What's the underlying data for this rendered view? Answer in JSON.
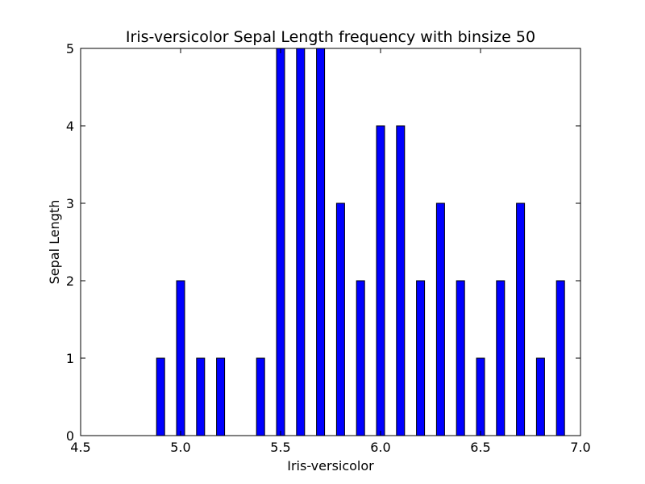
{
  "chart_data": {
    "type": "bar",
    "title": "Iris-versicolor Sepal Length frequency with binsize 50",
    "xlabel": "Iris-versicolor",
    "ylabel": "Sepal Length",
    "xlim": [
      4.5,
      7.0
    ],
    "ylim": [
      0,
      5
    ],
    "xticks": [
      "4.5",
      "5.0",
      "5.5",
      "6.0",
      "6.5",
      "7.0"
    ],
    "yticks": [
      "0",
      "1",
      "2",
      "3",
      "4",
      "5"
    ],
    "grid": false,
    "bar_color": "#0000ff",
    "edge_color": "#000000",
    "bins": [
      {
        "x": 4.9,
        "value": 1
      },
      {
        "x": 5.0,
        "value": 2
      },
      {
        "x": 5.1,
        "value": 1
      },
      {
        "x": 5.2,
        "value": 1
      },
      {
        "x": 5.4,
        "value": 1
      },
      {
        "x": 5.5,
        "value": 5
      },
      {
        "x": 5.6,
        "value": 5
      },
      {
        "x": 5.7,
        "value": 5
      },
      {
        "x": 5.8,
        "value": 3
      },
      {
        "x": 5.9,
        "value": 2
      },
      {
        "x": 6.0,
        "value": 4
      },
      {
        "x": 6.1,
        "value": 4
      },
      {
        "x": 6.2,
        "value": 2
      },
      {
        "x": 6.3,
        "value": 3
      },
      {
        "x": 6.4,
        "value": 2
      },
      {
        "x": 6.5,
        "value": 1
      },
      {
        "x": 6.6,
        "value": 2
      },
      {
        "x": 6.7,
        "value": 3
      },
      {
        "x": 6.8,
        "value": 1
      },
      {
        "x": 6.9,
        "value": 2
      }
    ]
  }
}
